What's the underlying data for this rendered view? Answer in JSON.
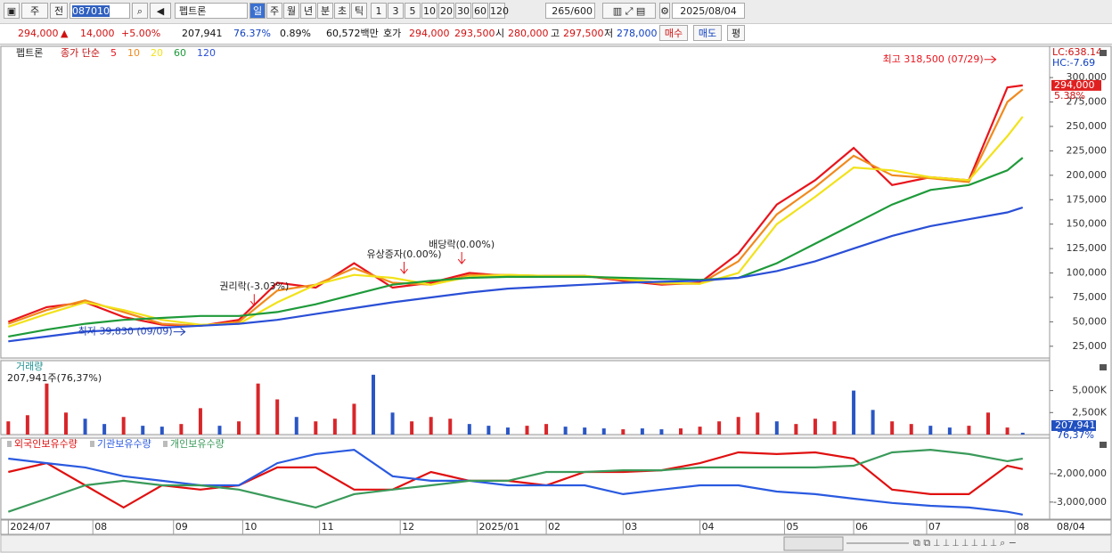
{
  "toolbar": {
    "period": "주",
    "prev": "전",
    "code": "087010",
    "name": "펩트론",
    "periods": [
      "일",
      "주",
      "월",
      "년",
      "분",
      "초",
      "틱"
    ],
    "intervals": [
      "1",
      "3",
      "5",
      "10",
      "20",
      "30",
      "60",
      "120"
    ],
    "count": "265",
    "max": "/600",
    "date": "2025/08/04"
  },
  "quote": {
    "price": "294,000",
    "sign": "▲",
    "change": "14,000",
    "rate": "+5.00%",
    "volume": "207,941",
    "vol_ratio": "76.37%",
    "turnover": "0.89%",
    "amount": "60,572백만",
    "ask_label": "호가",
    "ask": "294,000",
    "bid": "293,500",
    "open_label": "시",
    "open": "280,000",
    "high_label": "고",
    "high": "297,500",
    "low_label": "저",
    "low": "278,000",
    "buy": "매수",
    "sell": "매도",
    "avg": "평"
  },
  "chart_data": [
    {
      "type": "line",
      "title": "펩트론",
      "subtitle": "종가 단순",
      "lc": "LC:638.14",
      "hc": "HC:-7.69",
      "last_label": "294,000",
      "last_change": "5.38%",
      "end_label": "08/04",
      "x": [
        0,
        10,
        20,
        30,
        40,
        50,
        60,
        70,
        80,
        90,
        100,
        110,
        120,
        130,
        140,
        150,
        160,
        170,
        180,
        190,
        200,
        210,
        220,
        230,
        240,
        250,
        260,
        264
      ],
      "xlim": [
        -1,
        271
      ],
      "xticks": [
        {
          "value": 0,
          "label": "2024/07"
        },
        {
          "value": 22,
          "label": "08"
        },
        {
          "value": 43,
          "label": "09"
        },
        {
          "value": 61,
          "label": "10"
        },
        {
          "value": 81,
          "label": "11"
        },
        {
          "value": 102,
          "label": "12"
        },
        {
          "value": 122,
          "label": "2025/01"
        },
        {
          "value": 140,
          "label": "02"
        },
        {
          "value": 160,
          "label": "03"
        },
        {
          "value": 180,
          "label": "04"
        },
        {
          "value": 202,
          "label": "05"
        },
        {
          "value": 220,
          "label": "06"
        },
        {
          "value": 239,
          "label": "07"
        },
        {
          "value": 262,
          "label": "08"
        }
      ],
      "ylim": [
        13000,
        332000
      ],
      "yticks": [
        {
          "value": 25000,
          "label": "25,000"
        },
        {
          "value": 50000,
          "label": "50,000"
        },
        {
          "value": 75000,
          "label": "75,000"
        },
        {
          "value": 100000,
          "label": "100,000"
        },
        {
          "value": 125000,
          "label": "125,000"
        },
        {
          "value": 150000,
          "label": "150,000"
        },
        {
          "value": 175000,
          "label": "175,000"
        },
        {
          "value": 200000,
          "label": "200,000"
        },
        {
          "value": 225000,
          "label": "225,000"
        },
        {
          "value": 250000,
          "label": "250,000"
        },
        {
          "value": 275000,
          "label": "275,000"
        },
        {
          "value": 300000,
          "label": "300,000"
        }
      ],
      "grid": false,
      "series": [
        {
          "name": "5",
          "color": "#e8141c",
          "values": [
            50000,
            65000,
            70000,
            55000,
            47000,
            46000,
            52000,
            90000,
            85000,
            110000,
            85000,
            90000,
            100000,
            97000,
            97000,
            97000,
            92000,
            88000,
            90000,
            120000,
            170000,
            195000,
            228000,
            190000,
            198000,
            195000,
            290000,
            292000
          ]
        },
        {
          "name": "10",
          "color": "#f08a1e",
          "values": [
            48000,
            62000,
            72000,
            60000,
            48000,
            46000,
            50000,
            82000,
            88000,
            105000,
            90000,
            88000,
            98000,
            98000,
            97000,
            97000,
            93000,
            89000,
            89000,
            112000,
            160000,
            188000,
            220000,
            200000,
            197000,
            193000,
            275000,
            288000
          ]
        },
        {
          "name": "20",
          "color": "#f2e21a",
          "values": [
            45000,
            58000,
            70000,
            62000,
            52000,
            47000,
            48000,
            70000,
            88000,
            98000,
            95000,
            88000,
            96000,
            98000,
            97000,
            97000,
            94000,
            90000,
            89000,
            100000,
            150000,
            178000,
            208000,
            205000,
            198000,
            195000,
            240000,
            260000
          ]
        },
        {
          "name": "60",
          "color": "#1e9a3a",
          "values": [
            35000,
            42000,
            48000,
            52000,
            54000,
            56000,
            56000,
            60000,
            68000,
            78000,
            88000,
            92000,
            95000,
            96000,
            96000,
            96000,
            95000,
            94000,
            93000,
            95000,
            110000,
            130000,
            150000,
            170000,
            185000,
            190000,
            205000,
            218000
          ]
        },
        {
          "name": "120",
          "color": "#2a4fd6",
          "values": [
            30000,
            35000,
            40000,
            42000,
            44000,
            46000,
            48000,
            52000,
            58000,
            64000,
            70000,
            75000,
            80000,
            84000,
            86000,
            88000,
            90000,
            91000,
            92000,
            95000,
            102000,
            112000,
            125000,
            138000,
            148000,
            155000,
            162000,
            167000
          ]
        }
      ],
      "annotations": [
        {
          "text": "최고 318,500 (07/29)",
          "x": 257,
          "y": 318500,
          "arrow": "right",
          "color": "#e8141c"
        },
        {
          "text": "최저 39,830 (09/09)",
          "x": 46,
          "y": 39830,
          "arrow": "right",
          "color": "#1f3fb0"
        },
        {
          "text": "권리락(-3.03%)",
          "x": 64,
          "y": 62000,
          "arrow": "down",
          "color": "#e8141c"
        },
        {
          "text": "유상증자(0.00%)",
          "x": 103,
          "y": 95000,
          "arrow": "down",
          "color": "#e8141c"
        },
        {
          "text": "배당락(0.00%)",
          "x": 118,
          "y": 105000,
          "arrow": "down",
          "color": "#e8141c"
        }
      ]
    },
    {
      "type": "bar",
      "title": "거래량",
      "subtitle": "207,941주(76,37%)",
      "last_label": "207,941",
      "last_change": "76,37%",
      "x": [
        0,
        5,
        10,
        15,
        20,
        25,
        30,
        35,
        40,
        45,
        50,
        55,
        60,
        65,
        70,
        75,
        80,
        85,
        90,
        95,
        100,
        105,
        110,
        115,
        120,
        125,
        130,
        135,
        140,
        145,
        150,
        155,
        160,
        165,
        170,
        175,
        180,
        185,
        190,
        195,
        200,
        205,
        210,
        215,
        220,
        225,
        230,
        235,
        240,
        245,
        250,
        255,
        260,
        264
      ],
      "values": [
        1500000,
        2200000,
        5800000,
        2500000,
        1800000,
        1200000,
        2000000,
        1000000,
        900000,
        1200000,
        3000000,
        1000000,
        1500000,
        5800000,
        4000000,
        2000000,
        1500000,
        1800000,
        3500000,
        6800000,
        2500000,
        1500000,
        2000000,
        1800000,
        1200000,
        1000000,
        800000,
        1000000,
        1200000,
        900000,
        800000,
        700000,
        600000,
        700000,
        600000,
        700000,
        900000,
        1500000,
        2000000,
        2500000,
        1500000,
        1200000,
        1800000,
        1500000,
        5000000,
        2800000,
        1500000,
        1200000,
        1000000,
        800000,
        1000000,
        2500000,
        800000,
        207941
      ],
      "colors": [
        "#d8262a",
        "#d8262a",
        "#d8262a",
        "#d8262a",
        "#2a56c4",
        "#2a56c4",
        "#d8262a",
        "#2a56c4",
        "#2a56c4",
        "#d8262a",
        "#d8262a",
        "#2a56c4",
        "#d8262a",
        "#d8262a",
        "#d8262a",
        "#2a56c4",
        "#d8262a",
        "#d8262a",
        "#d8262a",
        "#2a56c4",
        "#2a56c4",
        "#d8262a",
        "#d8262a",
        "#d8262a",
        "#2a56c4",
        "#2a56c4",
        "#2a56c4",
        "#d8262a",
        "#d8262a",
        "#2a56c4",
        "#2a56c4",
        "#2a56c4",
        "#d8262a",
        "#2a56c4",
        "#2a56c4",
        "#d8262a",
        "#d8262a",
        "#d8262a",
        "#d8262a",
        "#d8262a",
        "#2a56c4",
        "#d8262a",
        "#d8262a",
        "#d8262a",
        "#2a56c4",
        "#2a56c4",
        "#d8262a",
        "#d8262a",
        "#2a56c4",
        "#2a56c4",
        "#d8262a",
        "#d8262a",
        "#d8262a",
        "#2a56c4"
      ],
      "ylim": [
        0,
        8200000
      ],
      "yticks": [
        {
          "value": 2500000,
          "label": "2,500K"
        },
        {
          "value": 5000000,
          "label": "5,000K"
        }
      ]
    },
    {
      "type": "line",
      "x": [
        0,
        10,
        20,
        30,
        40,
        50,
        60,
        70,
        80,
        90,
        100,
        110,
        120,
        130,
        140,
        150,
        160,
        170,
        180,
        190,
        200,
        210,
        220,
        230,
        240,
        250,
        260,
        264
      ],
      "ylim": [
        -3600000,
        -750000
      ],
      "yticks": [
        {
          "value": -3000000,
          "label": "-3,000,000"
        },
        {
          "value": -2000000,
          "label": "-2,000,000"
        }
      ],
      "series": [
        {
          "name": "외국인보유수량",
          "color": "#e01010",
          "values": [
            -1940000,
            -1630000,
            -2410000,
            -3190000,
            -2410000,
            -2560000,
            -2410000,
            -1780000,
            -1780000,
            -2560000,
            -2560000,
            -1940000,
            -2250000,
            -2250000,
            -2410000,
            -1940000,
            -1940000,
            -1880000,
            -1630000,
            -1250000,
            -1310000,
            -1250000,
            -1470000,
            -2560000,
            -2720000,
            -2720000,
            -1720000,
            -1840000
          ]
        },
        {
          "name": "기관보유수량",
          "color": "#2a5ae0",
          "values": [
            -1470000,
            -1630000,
            -1780000,
            -2090000,
            -2250000,
            -2410000,
            -2410000,
            -1630000,
            -1310000,
            -1160000,
            -2090000,
            -2250000,
            -2250000,
            -2410000,
            -2410000,
            -2410000,
            -2720000,
            -2560000,
            -2410000,
            -2410000,
            -2630000,
            -2720000,
            -2880000,
            -3030000,
            -3130000,
            -3190000,
            -3340000,
            -3440000
          ]
        },
        {
          "name": "개인보유수량",
          "color": "#3a9a5a",
          "values": [
            -3340000,
            -2880000,
            -2410000,
            -2250000,
            -2410000,
            -2410000,
            -2560000,
            -2880000,
            -3190000,
            -2720000,
            -2560000,
            -2410000,
            -2250000,
            -2250000,
            -1940000,
            -1940000,
            -1880000,
            -1880000,
            -1780000,
            -1780000,
            -1780000,
            -1780000,
            -1720000,
            -1250000,
            -1160000,
            -1310000,
            -1560000,
            -1470000
          ]
        }
      ]
    }
  ]
}
